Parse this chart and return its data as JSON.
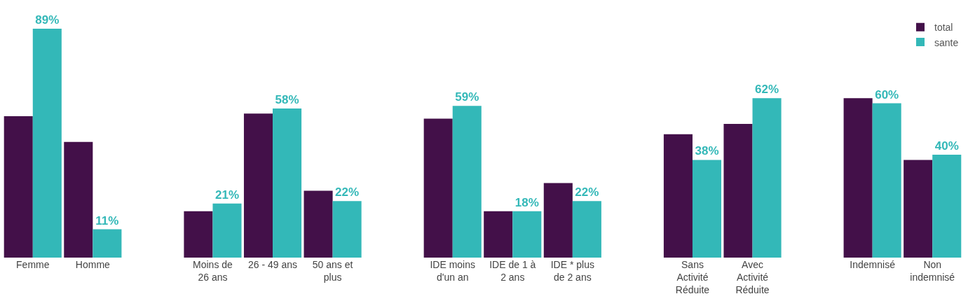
{
  "chart_data": {
    "type": "bar",
    "categories": [
      "Femme",
      "Homme",
      null,
      "Moins de\n26 ans",
      "26 - 49 ans",
      "50 ans et\nplus",
      null,
      "IDE moins\nd'un an",
      "IDE de 1 à\n2 ans",
      "IDE * plus\nde 2 ans",
      null,
      "Sans\nActivité\nRéduite",
      "Avec\nActivité\nRéduite",
      null,
      "Indemnisé",
      "Non\nindemnisé"
    ],
    "series": [
      {
        "name": "total",
        "color": "#431049",
        "values": [
          55,
          45,
          null,
          18,
          56,
          26,
          null,
          54,
          18,
          29,
          null,
          48,
          52,
          null,
          62,
          38
        ]
      },
      {
        "name": "sante",
        "color": "#33b8b8",
        "values": [
          89,
          11,
          null,
          21,
          58,
          22,
          null,
          59,
          18,
          22,
          null,
          38,
          62,
          null,
          60,
          40
        ],
        "value_labels": [
          "89%",
          "11%",
          null,
          "21%",
          "58%",
          "22%",
          null,
          "59%",
          "18%",
          "22%",
          null,
          "38%",
          "62%",
          null,
          "60%",
          "40%"
        ]
      }
    ],
    "ylim": [
      0,
      92
    ],
    "tick_labels": "x",
    "legend": "top right"
  }
}
